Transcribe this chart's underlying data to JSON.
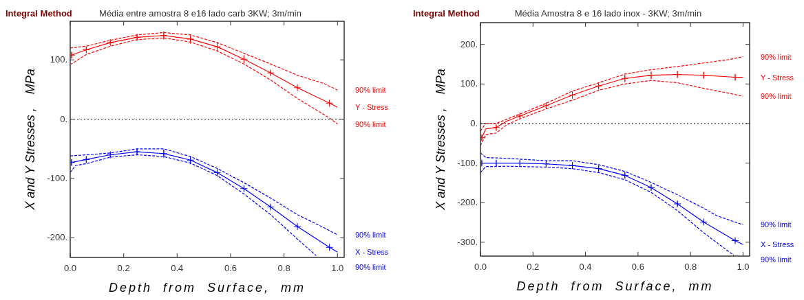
{
  "chart_data": [
    {
      "type": "line",
      "title": "Média entre amostra 8 e16  lado carb 3KW; 3m/min",
      "xlabel": "Depth  from  Surface,  mm",
      "ylabel": "X and Y Stresses ,    MPa",
      "annotations": [
        "Integral Method"
      ],
      "xlim": [
        0,
        1.025
      ],
      "ylim": [
        -233,
        165
      ],
      "xticks": [
        {
          "value": 0,
          "label": "0.0"
        },
        {
          "value": 0.2,
          "label": "0.2"
        },
        {
          "value": 0.4,
          "label": "0.4"
        },
        {
          "value": 0.6,
          "label": "0.6"
        },
        {
          "value": 0.8,
          "label": "0.8"
        },
        {
          "value": 1,
          "label": "1.0"
        }
      ],
      "yticks": [
        {
          "value": -200,
          "label": "-200."
        },
        {
          "value": -100,
          "label": "-100."
        },
        {
          "value": 0,
          "label": "0."
        },
        {
          "value": 100,
          "label": "100."
        }
      ],
      "grid": false,
      "legend": "right",
      "ref_lines": [
        {
          "axis": "y",
          "value": 0,
          "color": "#000000",
          "line_style": "dotted"
        }
      ],
      "series": [
        {
          "name": "90% limit",
          "color": "#ff0000",
          "line_style": "dashed",
          "x": [
            0,
            0.06,
            0.15,
            0.25,
            0.35,
            0.45,
            0.55,
            0.65,
            0.75,
            0.85,
            0.95,
            1.0
          ],
          "values": [
            120,
            123,
            133,
            142,
            146,
            142,
            129,
            111,
            93,
            74,
            60,
            49
          ]
        },
        {
          "name": "Y - Stress",
          "color": "#ff0000",
          "line_style": "solid",
          "marker": "cross",
          "x": [
            0.005,
            0.06,
            0.15,
            0.25,
            0.35,
            0.45,
            0.55,
            0.65,
            0.75,
            0.85,
            0.97,
            1.0
          ],
          "values": [
            108,
            117,
            129,
            138,
            141,
            135,
            122,
            101,
            78,
            53,
            27,
            20
          ],
          "errors": [
            5,
            5,
            4,
            5,
            7,
            8,
            8,
            7,
            4,
            2,
            2,
            null
          ]
        },
        {
          "name": "90% limit",
          "color": "#ff0000",
          "line_style": "dashed",
          "x": [
            0,
            0.06,
            0.15,
            0.25,
            0.35,
            0.45,
            0.55,
            0.65,
            0.75,
            0.85,
            0.97,
            1.0
          ],
          "values": [
            92,
            109,
            123,
            134,
            137,
            130,
            115,
            93,
            66,
            35,
            2,
            -8
          ]
        },
        {
          "name": "90% limit",
          "color": "#0000ff",
          "line_style": "dashed",
          "x": [
            0,
            0.06,
            0.15,
            0.25,
            0.35,
            0.45,
            0.55,
            0.65,
            0.75,
            0.85,
            0.95,
            1.0
          ],
          "values": [
            -62,
            -60,
            -57,
            -50,
            -50,
            -63,
            -83,
            -107,
            -133,
            -161,
            -183,
            -195
          ]
        },
        {
          "name": "X - Stress",
          "color": "#0000ff",
          "line_style": "solid",
          "marker": "cross",
          "x": [
            0.005,
            0.06,
            0.15,
            0.25,
            0.35,
            0.45,
            0.55,
            0.65,
            0.75,
            0.85,
            0.97,
            1.0
          ],
          "values": [
            -73,
            -68,
            -60,
            -55,
            -58,
            -69,
            -90,
            -117,
            -148,
            -181,
            -216,
            -224
          ],
          "errors": [
            5,
            5,
            4,
            5,
            7,
            7,
            7,
            4,
            3,
            2,
            2,
            null
          ]
        },
        {
          "name": "90% limit",
          "color": "#0000ff",
          "line_style": "dashed",
          "x": [
            0,
            0.02,
            0.06,
            0.15,
            0.25,
            0.35,
            0.45,
            0.55,
            0.65,
            0.75,
            0.85,
            0.92
          ],
          "values": [
            -90,
            -78,
            -75,
            -64,
            -60,
            -63,
            -74,
            -95,
            -126,
            -161,
            -202,
            -230
          ]
        }
      ]
    },
    {
      "type": "line",
      "title": "Média Amostra 8 e 16 lado inox - 3KW; 3m/min",
      "xlabel": "Depth  from  Surface,  mm",
      "ylabel": "X and Y Stresses ,    MPa",
      "annotations": [
        "Integral Method"
      ],
      "xlim": [
        0,
        1.025
      ],
      "ylim": [
        -335,
        255
      ],
      "xticks": [
        {
          "value": 0,
          "label": "0.0"
        },
        {
          "value": 0.2,
          "label": "0.2"
        },
        {
          "value": 0.4,
          "label": "0.4"
        },
        {
          "value": 0.6,
          "label": "0.6"
        },
        {
          "value": 0.8,
          "label": "0.8"
        },
        {
          "value": 1,
          "label": "1.0"
        }
      ],
      "yticks": [
        {
          "value": -300,
          "label": "-300."
        },
        {
          "value": -200,
          "label": "-200."
        },
        {
          "value": -100,
          "label": "-100."
        },
        {
          "value": 0,
          "label": "0."
        },
        {
          "value": 100,
          "label": "100."
        },
        {
          "value": 200,
          "label": "200."
        }
      ],
      "grid": false,
      "legend": "right",
      "ref_lines": [
        {
          "axis": "y",
          "value": 0,
          "color": "#000000",
          "line_style": "dotted"
        }
      ],
      "series": [
        {
          "name": "90% limit",
          "color": "#ff0000",
          "line_style": "dashed",
          "x": [
            0,
            0.02,
            0.06,
            0.1,
            0.15,
            0.25,
            0.35,
            0.45,
            0.55,
            0.65,
            0.75,
            0.85,
            0.95,
            1.0
          ],
          "values": [
            -19,
            0,
            0,
            11,
            24,
            51,
            82,
            103,
            125,
            136,
            144,
            153,
            162,
            169
          ]
        },
        {
          "name": "Y - Stress",
          "color": "#ff0000",
          "line_style": "solid",
          "marker": "cross",
          "x": [
            0.005,
            0.02,
            0.06,
            0.1,
            0.15,
            0.25,
            0.35,
            0.45,
            0.55,
            0.65,
            0.75,
            0.85,
            0.97,
            1.0
          ],
          "values": [
            -36,
            -14,
            -10,
            6,
            19,
            45,
            72,
            95,
            114,
            122,
            124,
            122,
            117,
            117
          ],
          "errors": [
            6,
            null,
            7,
            null,
            6,
            7,
            9,
            9,
            9,
            9,
            8,
            8,
            7,
            null
          ]
        },
        {
          "name": "90% limit",
          "color": "#ff0000",
          "line_style": "dashed",
          "x": [
            0,
            0.02,
            0.06,
            0.1,
            0.15,
            0.25,
            0.35,
            0.45,
            0.55,
            0.65,
            0.75,
            0.85,
            0.95,
            1.0
          ],
          "values": [
            -56,
            -28,
            -24,
            -3,
            12,
            37,
            59,
            84,
            100,
            109,
            103,
            89,
            76,
            69
          ]
        },
        {
          "name": "90% limit",
          "color": "#0000ff",
          "line_style": "dashed",
          "x": [
            0,
            0.02,
            0.1,
            0.25,
            0.35,
            0.45,
            0.55,
            0.65,
            0.75,
            0.85,
            0.9,
            1.0
          ],
          "values": [
            -74,
            -86,
            -88,
            -94,
            -94,
            -104,
            -121,
            -149,
            -180,
            -214,
            -233,
            -256
          ]
        },
        {
          "name": "X - Stress",
          "color": "#0000ff",
          "line_style": "solid",
          "marker": "cross",
          "x": [
            0.005,
            0.06,
            0.15,
            0.25,
            0.35,
            0.45,
            0.55,
            0.65,
            0.75,
            0.85,
            0.97,
            1.0
          ],
          "values": [
            -100,
            -100,
            -100,
            -102,
            -106,
            -114,
            -131,
            -162,
            -203,
            -249,
            -296,
            -306
          ],
          "errors": [
            6,
            7,
            6,
            7,
            7,
            7,
            7,
            6,
            6,
            5,
            4,
            null
          ]
        },
        {
          "name": "90% limit",
          "color": "#0000ff",
          "line_style": "dashed",
          "x": [
            0,
            0.02,
            0.1,
            0.25,
            0.35,
            0.45,
            0.55,
            0.65,
            0.75,
            0.85,
            0.95,
            0.965
          ],
          "values": [
            -124,
            -109,
            -108,
            -110,
            -114,
            -124,
            -142,
            -174,
            -220,
            -276,
            -326,
            -333
          ]
        }
      ]
    }
  ]
}
